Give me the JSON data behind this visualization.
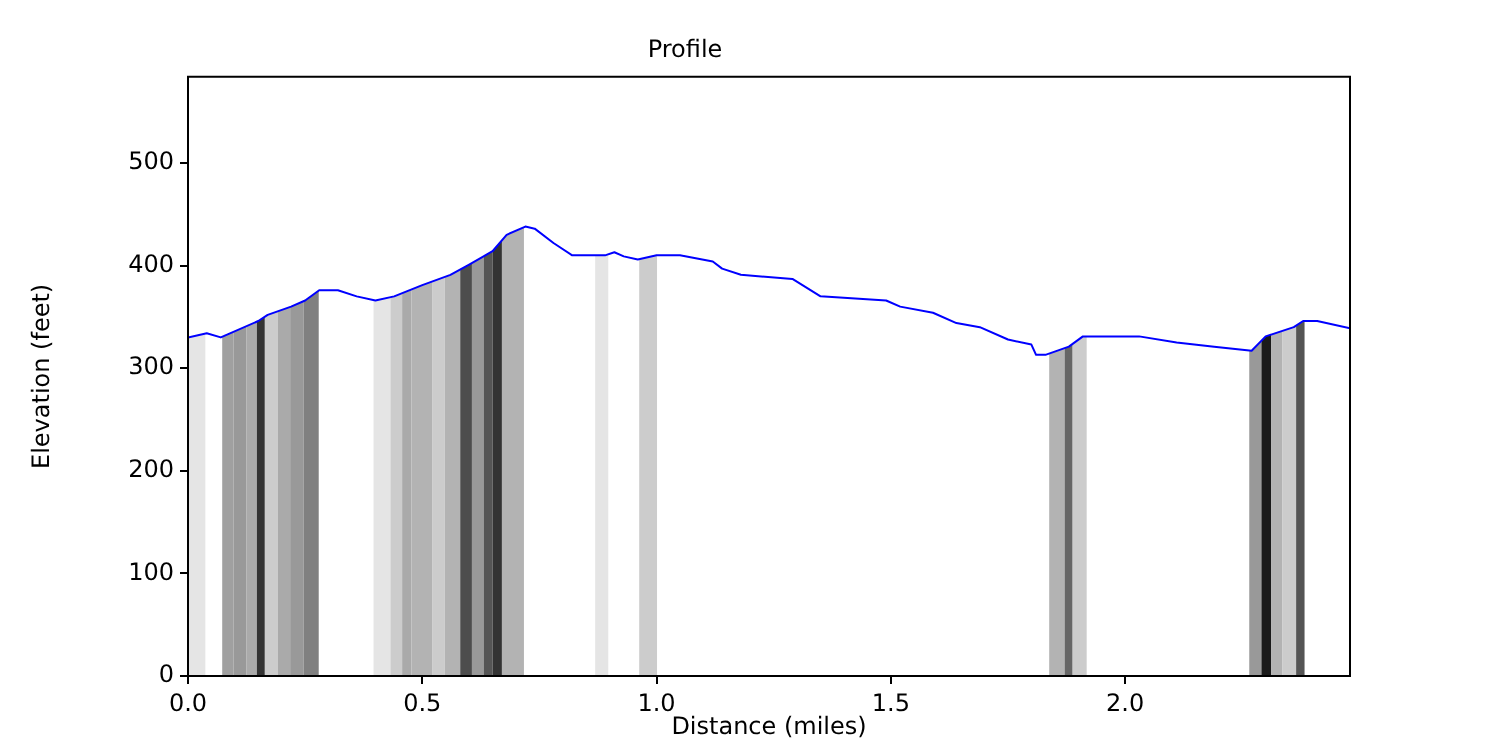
{
  "chart_data": {
    "type": "line",
    "title": "Profile",
    "xlabel": "Distance (miles)",
    "ylabel": "Elevation (feet)",
    "x": [
      0,
      0.04,
      0.07,
      0.15,
      0.17,
      0.22,
      0.25,
      0.28,
      0.32,
      0.36,
      0.4,
      0.44,
      0.5,
      0.56,
      0.6,
      0.65,
      0.68,
      0.72,
      0.74,
      0.78,
      0.82,
      0.89,
      0.91,
      0.93,
      0.96,
      1.0,
      1.05,
      1.12,
      1.14,
      1.18,
      1.29,
      1.35,
      1.49,
      1.52,
      1.59,
      1.64,
      1.69,
      1.75,
      1.8,
      1.81,
      1.83,
      1.88,
      1.91,
      2.03,
      2.11,
      2.19,
      2.27,
      2.3,
      2.36,
      2.38,
      2.41,
      2.48
    ],
    "series": [
      {
        "color": "#0000ff",
        "values": [
          330,
          334,
          330,
          346,
          352,
          360,
          366,
          376,
          376,
          370,
          366,
          370,
          381,
          391,
          401,
          414,
          430,
          438,
          436,
          422,
          410,
          410,
          413,
          409,
          406,
          410,
          410,
          404,
          397,
          391,
          387,
          370,
          366,
          360,
          354,
          344,
          340,
          328,
          323,
          313,
          313,
          321,
          331,
          331,
          325,
          321,
          317,
          331,
          340,
          346,
          346,
          339
        ]
      }
    ],
    "xlim": [
      0,
      2.48
    ],
    "ylim": [
      0,
      584
    ],
    "xticks": [
      {
        "value": 0,
        "label": "0.0"
      },
      {
        "value": 0.5,
        "label": "0.5"
      },
      {
        "value": 1,
        "label": "1.0"
      },
      {
        "value": 1.5,
        "label": "1.5"
      },
      {
        "value": 2,
        "label": "2.0"
      }
    ],
    "yticks": [
      0,
      100,
      200,
      300,
      400,
      500
    ],
    "marker": "none",
    "line_style": "solid",
    "grid": false,
    "legend": false,
    "bands": [
      {
        "axis": "x",
        "from": 0,
        "to": 0.037,
        "color": "#e5e5e5"
      },
      {
        "axis": "x",
        "from": 0.073,
        "to": 0.097,
        "color": "#a0a0a0"
      },
      {
        "axis": "x",
        "from": 0.097,
        "to": 0.125,
        "color": "#999999"
      },
      {
        "axis": "x",
        "from": 0.125,
        "to": 0.147,
        "color": "#aaaaaa"
      },
      {
        "axis": "x",
        "from": 0.147,
        "to": 0.164,
        "color": "#333333"
      },
      {
        "axis": "x",
        "from": 0.164,
        "to": 0.192,
        "color": "#cccccc"
      },
      {
        "axis": "x",
        "from": 0.192,
        "to": 0.218,
        "color": "#aaaaaa"
      },
      {
        "axis": "x",
        "from": 0.218,
        "to": 0.247,
        "color": "#999999"
      },
      {
        "axis": "x",
        "from": 0.247,
        "to": 0.279,
        "color": "#808080"
      },
      {
        "axis": "x",
        "from": 0.396,
        "to": 0.432,
        "color": "#e5e5e5"
      },
      {
        "axis": "x",
        "from": 0.432,
        "to": 0.457,
        "color": "#cccccc"
      },
      {
        "axis": "x",
        "from": 0.457,
        "to": 0.477,
        "color": "#aaaaaa"
      },
      {
        "axis": "x",
        "from": 0.477,
        "to": 0.521,
        "color": "#b3b3b3"
      },
      {
        "axis": "x",
        "from": 0.521,
        "to": 0.548,
        "color": "#cccccc"
      },
      {
        "axis": "x",
        "from": 0.548,
        "to": 0.581,
        "color": "#b3b3b3"
      },
      {
        "axis": "x",
        "from": 0.581,
        "to": 0.606,
        "color": "#4d4d4d"
      },
      {
        "axis": "x",
        "from": 0.606,
        "to": 0.631,
        "color": "#999999"
      },
      {
        "axis": "x",
        "from": 0.631,
        "to": 0.65,
        "color": "#555555"
      },
      {
        "axis": "x",
        "from": 0.65,
        "to": 0.67,
        "color": "#333333"
      },
      {
        "axis": "x",
        "from": 0.67,
        "to": 0.717,
        "color": "#b3b3b3"
      },
      {
        "axis": "x",
        "from": 0.869,
        "to": 0.897,
        "color": "#e5e5e5"
      },
      {
        "axis": "x",
        "from": 0.963,
        "to": 1.001,
        "color": "#cccccc"
      },
      {
        "axis": "x",
        "from": 1.838,
        "to": 1.871,
        "color": "#b3b3b3"
      },
      {
        "axis": "x",
        "from": 1.871,
        "to": 1.888,
        "color": "#666666"
      },
      {
        "axis": "x",
        "from": 1.888,
        "to": 1.918,
        "color": "#cccccc"
      },
      {
        "axis": "x",
        "from": 2.265,
        "to": 2.291,
        "color": "#999999"
      },
      {
        "axis": "x",
        "from": 2.291,
        "to": 2.312,
        "color": "#1a1a1a"
      },
      {
        "axis": "x",
        "from": 2.312,
        "to": 2.336,
        "color": "#b3b3b3"
      },
      {
        "axis": "x",
        "from": 2.336,
        "to": 2.365,
        "color": "#cccccc"
      },
      {
        "axis": "x",
        "from": 2.365,
        "to": 2.383,
        "color": "#555555"
      }
    ]
  }
}
